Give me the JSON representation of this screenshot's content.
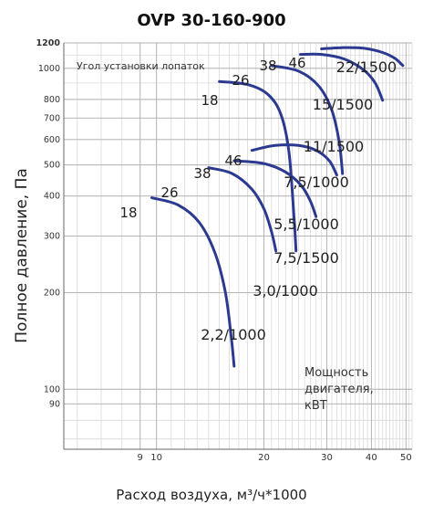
{
  "title": "OVP 30-160-900",
  "angle_label": "Угол установки лопаток",
  "motor_note": [
    "Мощность",
    "двигателя,",
    "кВТ"
  ],
  "chart_data": {
    "type": "line",
    "title": "OVP 30-160-900",
    "xlabel": "Расход воздуха, м³/ч*1000",
    "ylabel": "Полное давление, Па",
    "x_scale": "log",
    "y_scale": "log",
    "xlim": [
      5.5,
      52
    ],
    "ylim": [
      65,
      1200
    ],
    "x_ticks": [
      9,
      10,
      20,
      30,
      40,
      50
    ],
    "y_ticks": [
      90,
      100,
      200,
      300,
      400,
      500,
      600,
      700,
      800,
      1000,
      1200
    ],
    "grid": true,
    "series": [
      {
        "name": "18",
        "points": [
          [
            9.7,
            395
          ],
          [
            11.5,
            375
          ],
          [
            13.2,
            330
          ],
          [
            14.6,
            265
          ],
          [
            15.6,
            200
          ],
          [
            16.2,
            145
          ],
          [
            16.5,
            118
          ]
        ]
      },
      {
        "name": "26",
        "points": [
          [
            14.0,
            490
          ],
          [
            16.3,
            470
          ],
          [
            18.5,
            420
          ],
          [
            20.0,
            365
          ],
          [
            21.0,
            310
          ],
          [
            21.6,
            270
          ]
        ]
      },
      {
        "name": "38",
        "points": [
          [
            16.5,
            515
          ],
          [
            20.0,
            505
          ],
          [
            23.0,
            475
          ],
          [
            25.5,
            430
          ],
          [
            27.0,
            385
          ],
          [
            28.0,
            345
          ]
        ]
      },
      {
        "name": "46",
        "points": [
          [
            18.5,
            555
          ],
          [
            21.5,
            575
          ],
          [
            25.0,
            575
          ],
          [
            28.0,
            555
          ],
          [
            30.5,
            515
          ],
          [
            32.0,
            465
          ]
        ]
      },
      {
        "name": "18",
        "points": [
          [
            15.0,
            910
          ],
          [
            18.0,
            890
          ],
          [
            20.5,
            830
          ],
          [
            22.3,
            720
          ],
          [
            23.5,
            550
          ],
          [
            24.3,
            340
          ],
          [
            24.6,
            270
          ]
        ]
      },
      {
        "name": "26",
        "points": [
          [
            21.0,
            1020
          ],
          [
            25.0,
            980
          ],
          [
            28.5,
            880
          ],
          [
            31.0,
            740
          ],
          [
            32.5,
            590
          ],
          [
            33.2,
            470
          ]
        ]
      },
      {
        "name": "38",
        "points": [
          [
            25.3,
            1105
          ],
          [
            29.0,
            1105
          ],
          [
            33.5,
            1070
          ],
          [
            38.0,
            990
          ],
          [
            41.0,
            900
          ],
          [
            43.0,
            795
          ]
        ]
      },
      {
        "name": "46",
        "points": [
          [
            29.0,
            1150
          ],
          [
            33.0,
            1160
          ],
          [
            38.0,
            1155
          ],
          [
            43.0,
            1120
          ],
          [
            46.5,
            1075
          ],
          [
            49.0,
            1020
          ]
        ]
      }
    ],
    "curve_labels": [
      "18",
      "26",
      "38",
      "46",
      "18",
      "26",
      "38",
      "46"
    ],
    "power_labels": [
      "2,2/1000",
      "3,0/1000",
      "5,5/1000",
      "7,5/1000",
      "7,5/1500",
      "11/1500",
      "15/1500",
      "22/1500"
    ]
  }
}
